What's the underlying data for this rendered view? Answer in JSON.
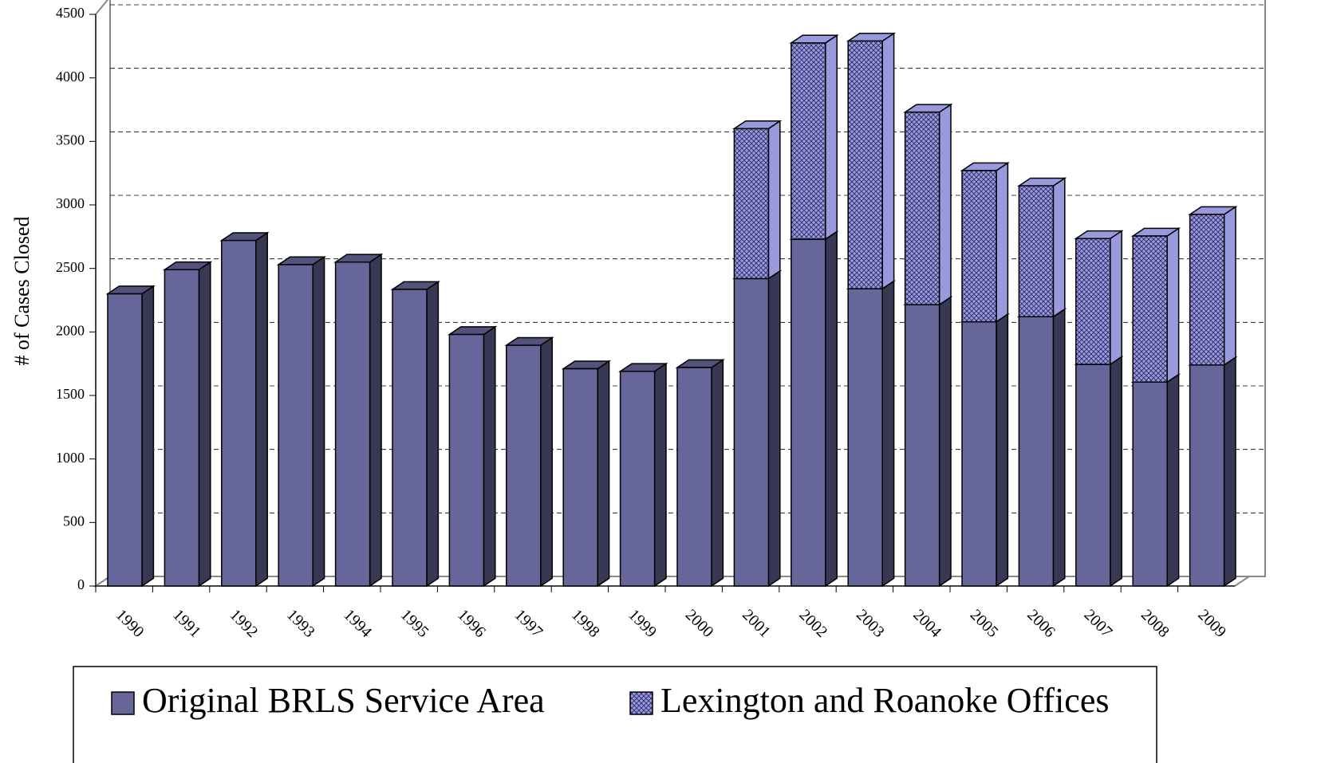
{
  "chart_data": {
    "type": "bar3d_stacked",
    "y_label": "# of Cases Closed",
    "categories": [
      "1990",
      "1991",
      "1992",
      "1993",
      "1994",
      "1995",
      "1996",
      "1997",
      "1998",
      "1999",
      "2000",
      "2001",
      "2002",
      "2003",
      "2004",
      "2005",
      "2006",
      "2007",
      "2008",
      "2009"
    ],
    "series": [
      {
        "name": "Original BRLS Service Area",
        "color": "#66669a",
        "values": [
          2300,
          2490,
          2720,
          2530,
          2550,
          2335,
          1980,
          1895,
          1710,
          1690,
          1720,
          2420,
          2730,
          2340,
          2215,
          2080,
          2120,
          1745,
          1605,
          1740
        ]
      },
      {
        "name": "Lexington and Roanoke Offices",
        "color": "#9999dd",
        "pattern": "crosshatch",
        "values": [
          null,
          null,
          null,
          null,
          null,
          null,
          null,
          null,
          null,
          null,
          null,
          1180,
          1545,
          1950,
          1515,
          1190,
          1030,
          990,
          1150,
          1185
        ]
      }
    ],
    "ylim": [
      0,
      4500
    ],
    "yticks": [
      0,
      500,
      1000,
      1500,
      2000,
      2500,
      3000,
      3500,
      4000,
      4500
    ],
    "grid": true,
    "legend": "bottom"
  }
}
